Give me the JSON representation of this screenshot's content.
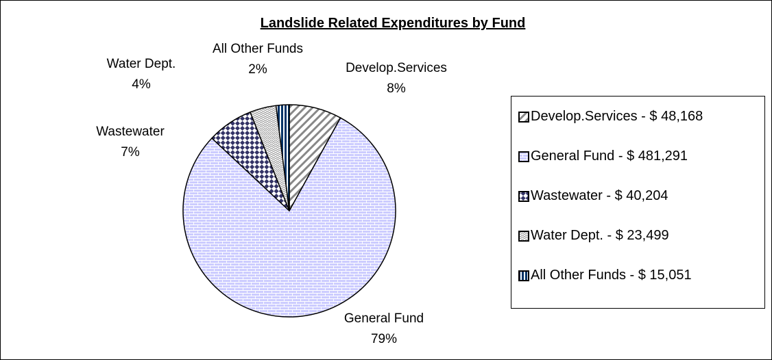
{
  "chart_data": {
    "type": "pie",
    "title": "Landslide Related Expenditures by Fund",
    "categories": [
      "Develop.Services",
      "General Fund",
      "Wastewater",
      "Water Dept.",
      "All Other Funds"
    ],
    "values": [
      8,
      79,
      7,
      4,
      2
    ],
    "value_labels": [
      "8%",
      "79%",
      "7%",
      "4%",
      "2%"
    ],
    "legend_labels": [
      "Develop.Services - $ 48,168",
      "General Fund - $ 481,291",
      "Wastewater - $ 40,204",
      "Water Dept. - $ 23,499",
      "All Other Funds - $ 15,051"
    ],
    "legend": "right"
  }
}
